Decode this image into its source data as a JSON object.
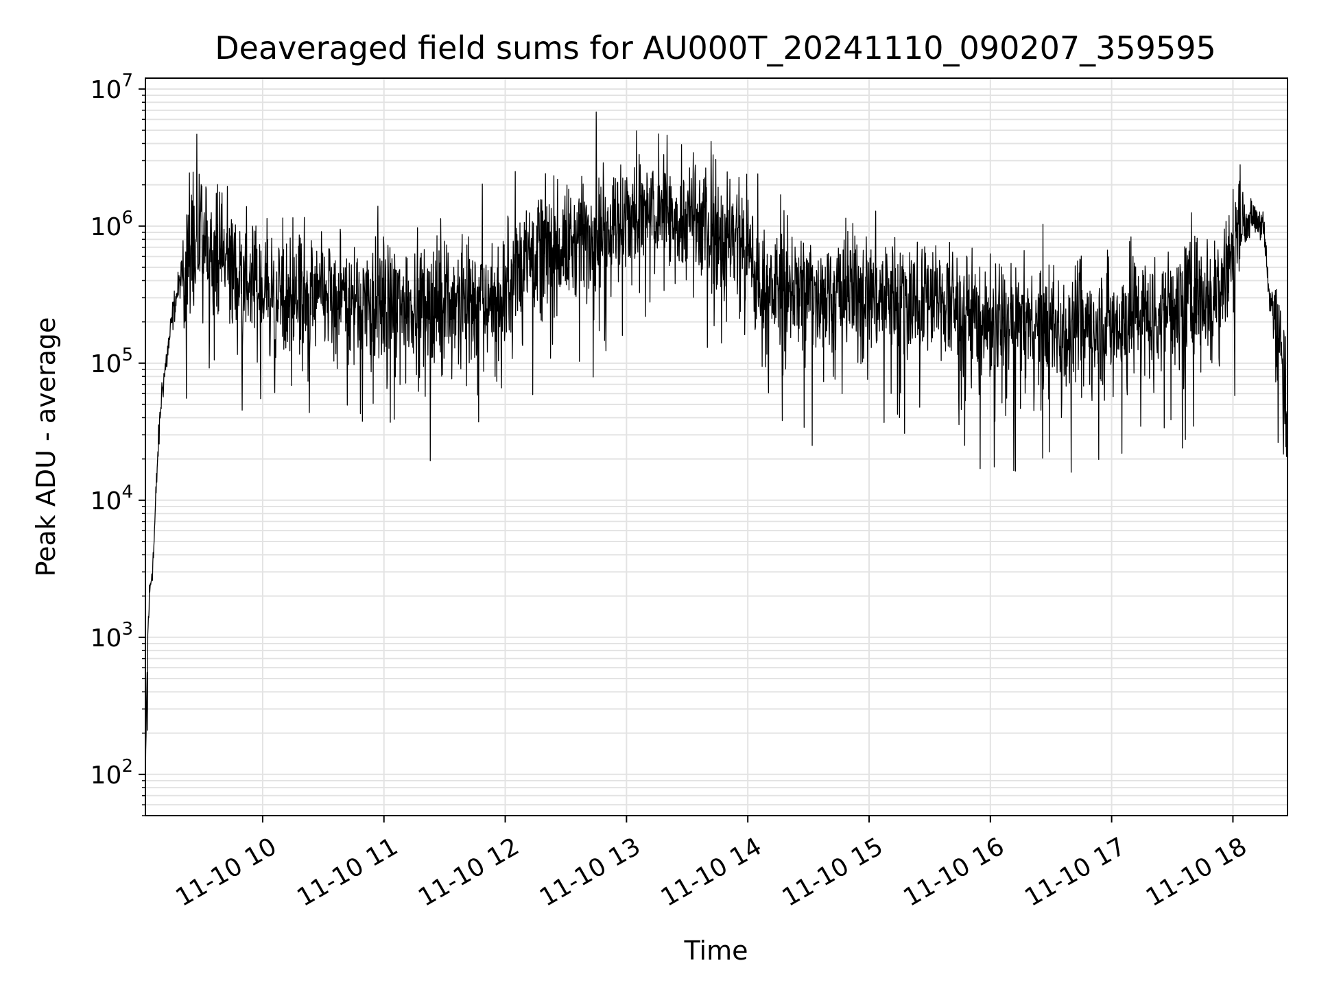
{
  "chart_data": {
    "type": "line",
    "title": "Deaveraged field sums for AU000T_20241110_090207_359595",
    "xlabel": "Time",
    "ylabel": "Peak ADU - average",
    "y_scale": "log",
    "x_range": [
      "2024-11-10 09:02",
      "2024-11-10 18:27"
    ],
    "ylim": [
      50,
      12000000
    ],
    "grid": true,
    "line_color": "#000000",
    "grid_color": "#e3e3e3",
    "x_ticks": [
      "11-10 10",
      "11-10 11",
      "11-10 12",
      "11-10 13",
      "11-10 14",
      "11-10 15",
      "11-10 16",
      "11-10 17",
      "11-10 18"
    ],
    "y_ticks": [
      {
        "base": "10",
        "exp": "2"
      },
      {
        "base": "10",
        "exp": "3"
      },
      {
        "base": "10",
        "exp": "4"
      },
      {
        "base": "10",
        "exp": "5"
      },
      {
        "base": "10",
        "exp": "6"
      },
      {
        "base": "10",
        "exp": "7"
      }
    ],
    "series": [
      {
        "baseline_points": [
          {
            "x": "2024-11-10 09:02",
            "y": 80
          },
          {
            "x": "2024-11-10 09:03",
            "y": 900
          },
          {
            "x": "2024-11-10 09:04",
            "y": 2000
          },
          {
            "x": "2024-11-10 09:06",
            "y": 4000
          },
          {
            "x": "2024-11-10 09:08",
            "y": 20000
          },
          {
            "x": "2024-11-10 09:10",
            "y": 60000
          },
          {
            "x": "2024-11-10 09:13",
            "y": 120000
          },
          {
            "x": "2024-11-10 09:16",
            "y": 250000
          },
          {
            "x": "2024-11-10 09:20",
            "y": 450000
          },
          {
            "x": "2024-11-10 09:25",
            "y": 700000
          },
          {
            "x": "2024-11-10 09:35",
            "y": 720000
          },
          {
            "x": "2024-11-10 09:45",
            "y": 500000
          },
          {
            "x": "2024-11-10 10:00",
            "y": 330000
          },
          {
            "x": "2024-11-10 11:00",
            "y": 280000
          },
          {
            "x": "2024-11-10 12:00",
            "y": 300000
          },
          {
            "x": "2024-11-10 12:10",
            "y": 700000
          },
          {
            "x": "2024-11-10 12:30",
            "y": 700000
          },
          {
            "x": "2024-11-10 12:50",
            "y": 1000000
          },
          {
            "x": "2024-11-10 13:10",
            "y": 1300000
          },
          {
            "x": "2024-11-10 13:40",
            "y": 1000000
          },
          {
            "x": "2024-11-10 14:00",
            "y": 700000
          },
          {
            "x": "2024-11-10 14:05",
            "y": 350000
          },
          {
            "x": "2024-11-10 15:00",
            "y": 320000
          },
          {
            "x": "2024-11-10 15:30",
            "y": 300000
          },
          {
            "x": "2024-11-10 16:00",
            "y": 200000
          },
          {
            "x": "2024-11-10 16:30",
            "y": 180000
          },
          {
            "x": "2024-11-10 17:00",
            "y": 200000
          },
          {
            "x": "2024-11-10 17:30",
            "y": 260000
          },
          {
            "x": "2024-11-10 17:55",
            "y": 400000
          },
          {
            "x": "2024-11-10 18:02",
            "y": 900000
          },
          {
            "x": "2024-11-10 18:10",
            "y": 1200000
          },
          {
            "x": "2024-11-10 18:15",
            "y": 1000000
          },
          {
            "x": "2024-11-10 18:18",
            "y": 300000
          },
          {
            "x": "2024-11-10 18:22",
            "y": 200000
          },
          {
            "x": "2024-11-10 18:27",
            "y": 35000
          }
        ],
        "spikes": [
          {
            "x": "2024-11-10 09:03",
            "y": 210
          },
          {
            "x": "2024-11-10 09:59",
            "y": 55000
          },
          {
            "x": "2024-11-10 10:15",
            "y": 1150000
          },
          {
            "x": "2024-11-10 11:55",
            "y": 80000
          },
          {
            "x": "2024-11-10 12:05",
            "y": 2500000
          },
          {
            "x": "2024-11-10 12:45",
            "y": 6800000
          },
          {
            "x": "2024-11-10 13:20",
            "y": 4600000
          },
          {
            "x": "2024-11-10 13:40",
            "y": 130000
          },
          {
            "x": "2024-11-10 14:05",
            "y": 2400000
          },
          {
            "x": "2024-11-10 15:15",
            "y": 40000
          },
          {
            "x": "2024-11-10 15:55",
            "y": 17000
          },
          {
            "x": "2024-11-10 16:40",
            "y": 16000
          },
          {
            "x": "2024-11-10 17:05",
            "y": 22000
          },
          {
            "x": "2024-11-10 17:35",
            "y": 24000
          },
          {
            "x": "2024-11-10 18:00",
            "y": 1850000
          }
        ]
      }
    ]
  }
}
